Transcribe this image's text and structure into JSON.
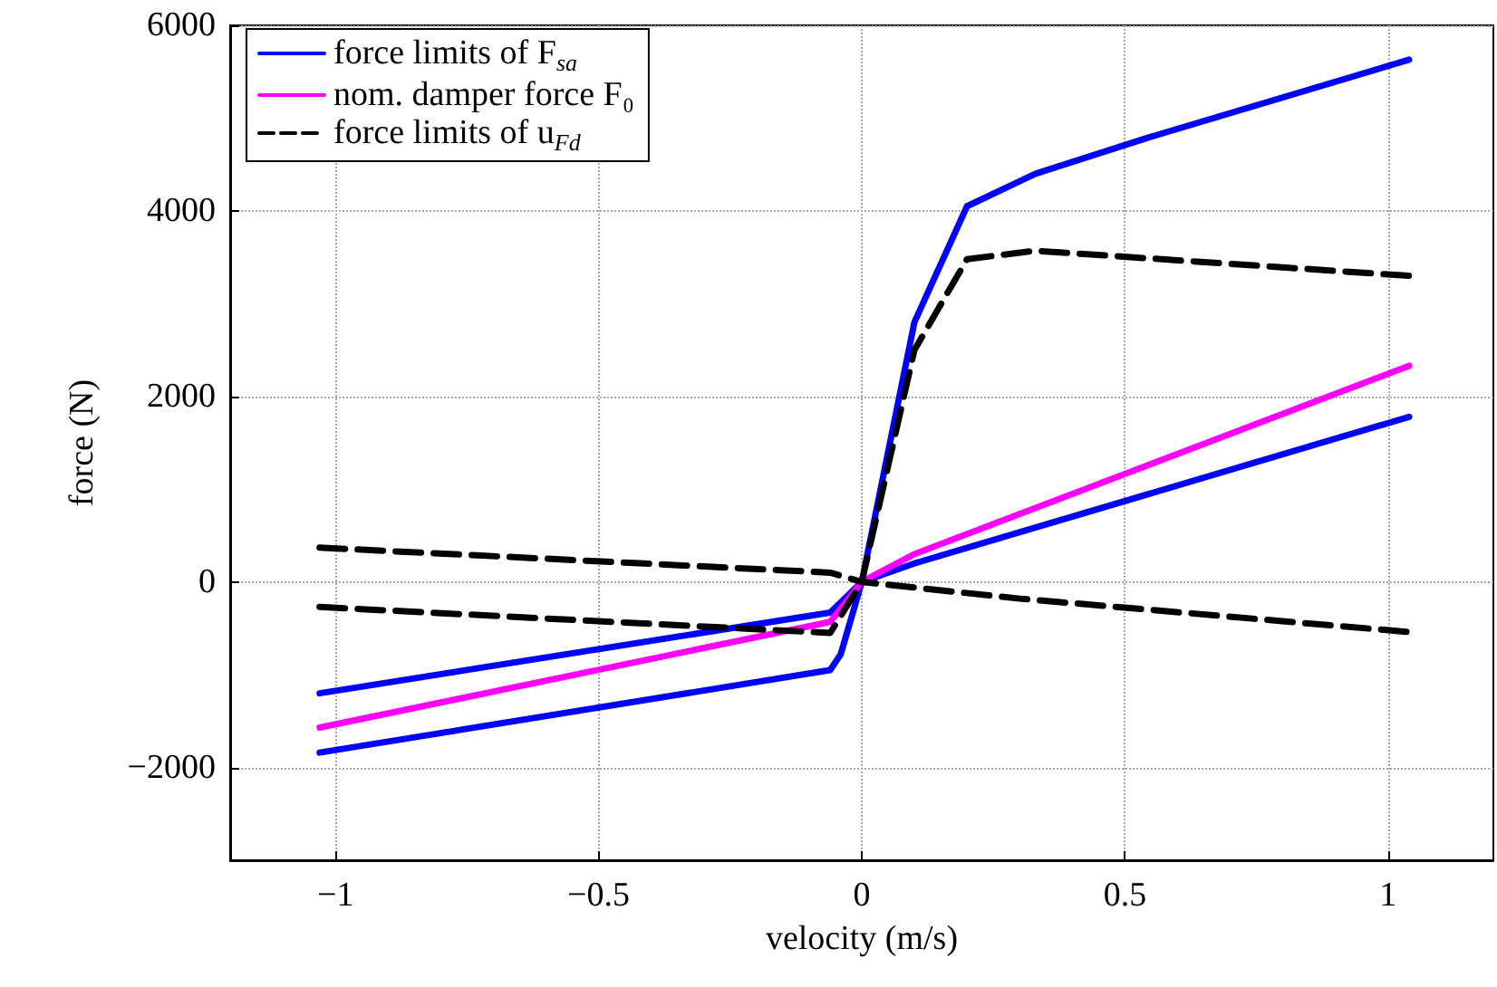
{
  "chart_data": {
    "type": "line",
    "xlabel": "velocity (m/s)",
    "ylabel": "force (N)",
    "xlim": [
      -1.2,
      1.2
    ],
    "xticks": [
      -1,
      -0.5,
      0,
      0.5,
      1
    ],
    "ylim": [
      -3000,
      6000
    ],
    "yticks": [
      -2000,
      0,
      2000,
      4000,
      6000
    ],
    "grid": true,
    "legend": "top left",
    "marker": "none",
    "series": [
      {
        "name": "force limits of F$_{sa}$",
        "color": "#0000ff",
        "line_style": "solid",
        "x": [
          -1.03,
          -0.06,
          -0.04,
          0,
          0.1,
          0.2,
          0.33,
          0.55,
          1.04
        ],
        "values": [
          -1840,
          -950,
          -780,
          0,
          2800,
          4050,
          4400,
          4800,
          5630
        ]
      },
      {
        "color": "#0000ff",
        "line_style": "solid",
        "x": [
          -1.03,
          -0.06,
          0,
          0.1,
          1.04
        ],
        "values": [
          -1200,
          -330,
          0,
          200,
          1780
        ]
      },
      {
        "name": "nom. damper force F₀",
        "color": "#ff00ff",
        "line_style": "solid",
        "x": [
          -1.03,
          -0.06,
          0,
          0.1,
          1.04
        ],
        "values": [
          -1570,
          -430,
          0,
          300,
          2330
        ]
      },
      {
        "name": "force limits of u$_{Fd}$",
        "color": "#000000",
        "line_style": "dashed",
        "x": [
          -1.03,
          -0.06,
          0,
          0.1,
          0.2,
          0.33,
          1.04
        ],
        "values": [
          -270,
          -550,
          0,
          2500,
          3480,
          3570,
          3300
        ]
      },
      {
        "color": "#000000",
        "line_style": "dashed",
        "x": [
          -1.03,
          -0.06,
          0,
          0.3,
          1.04
        ],
        "values": [
          370,
          100,
          0,
          -180,
          -540
        ]
      }
    ]
  }
}
